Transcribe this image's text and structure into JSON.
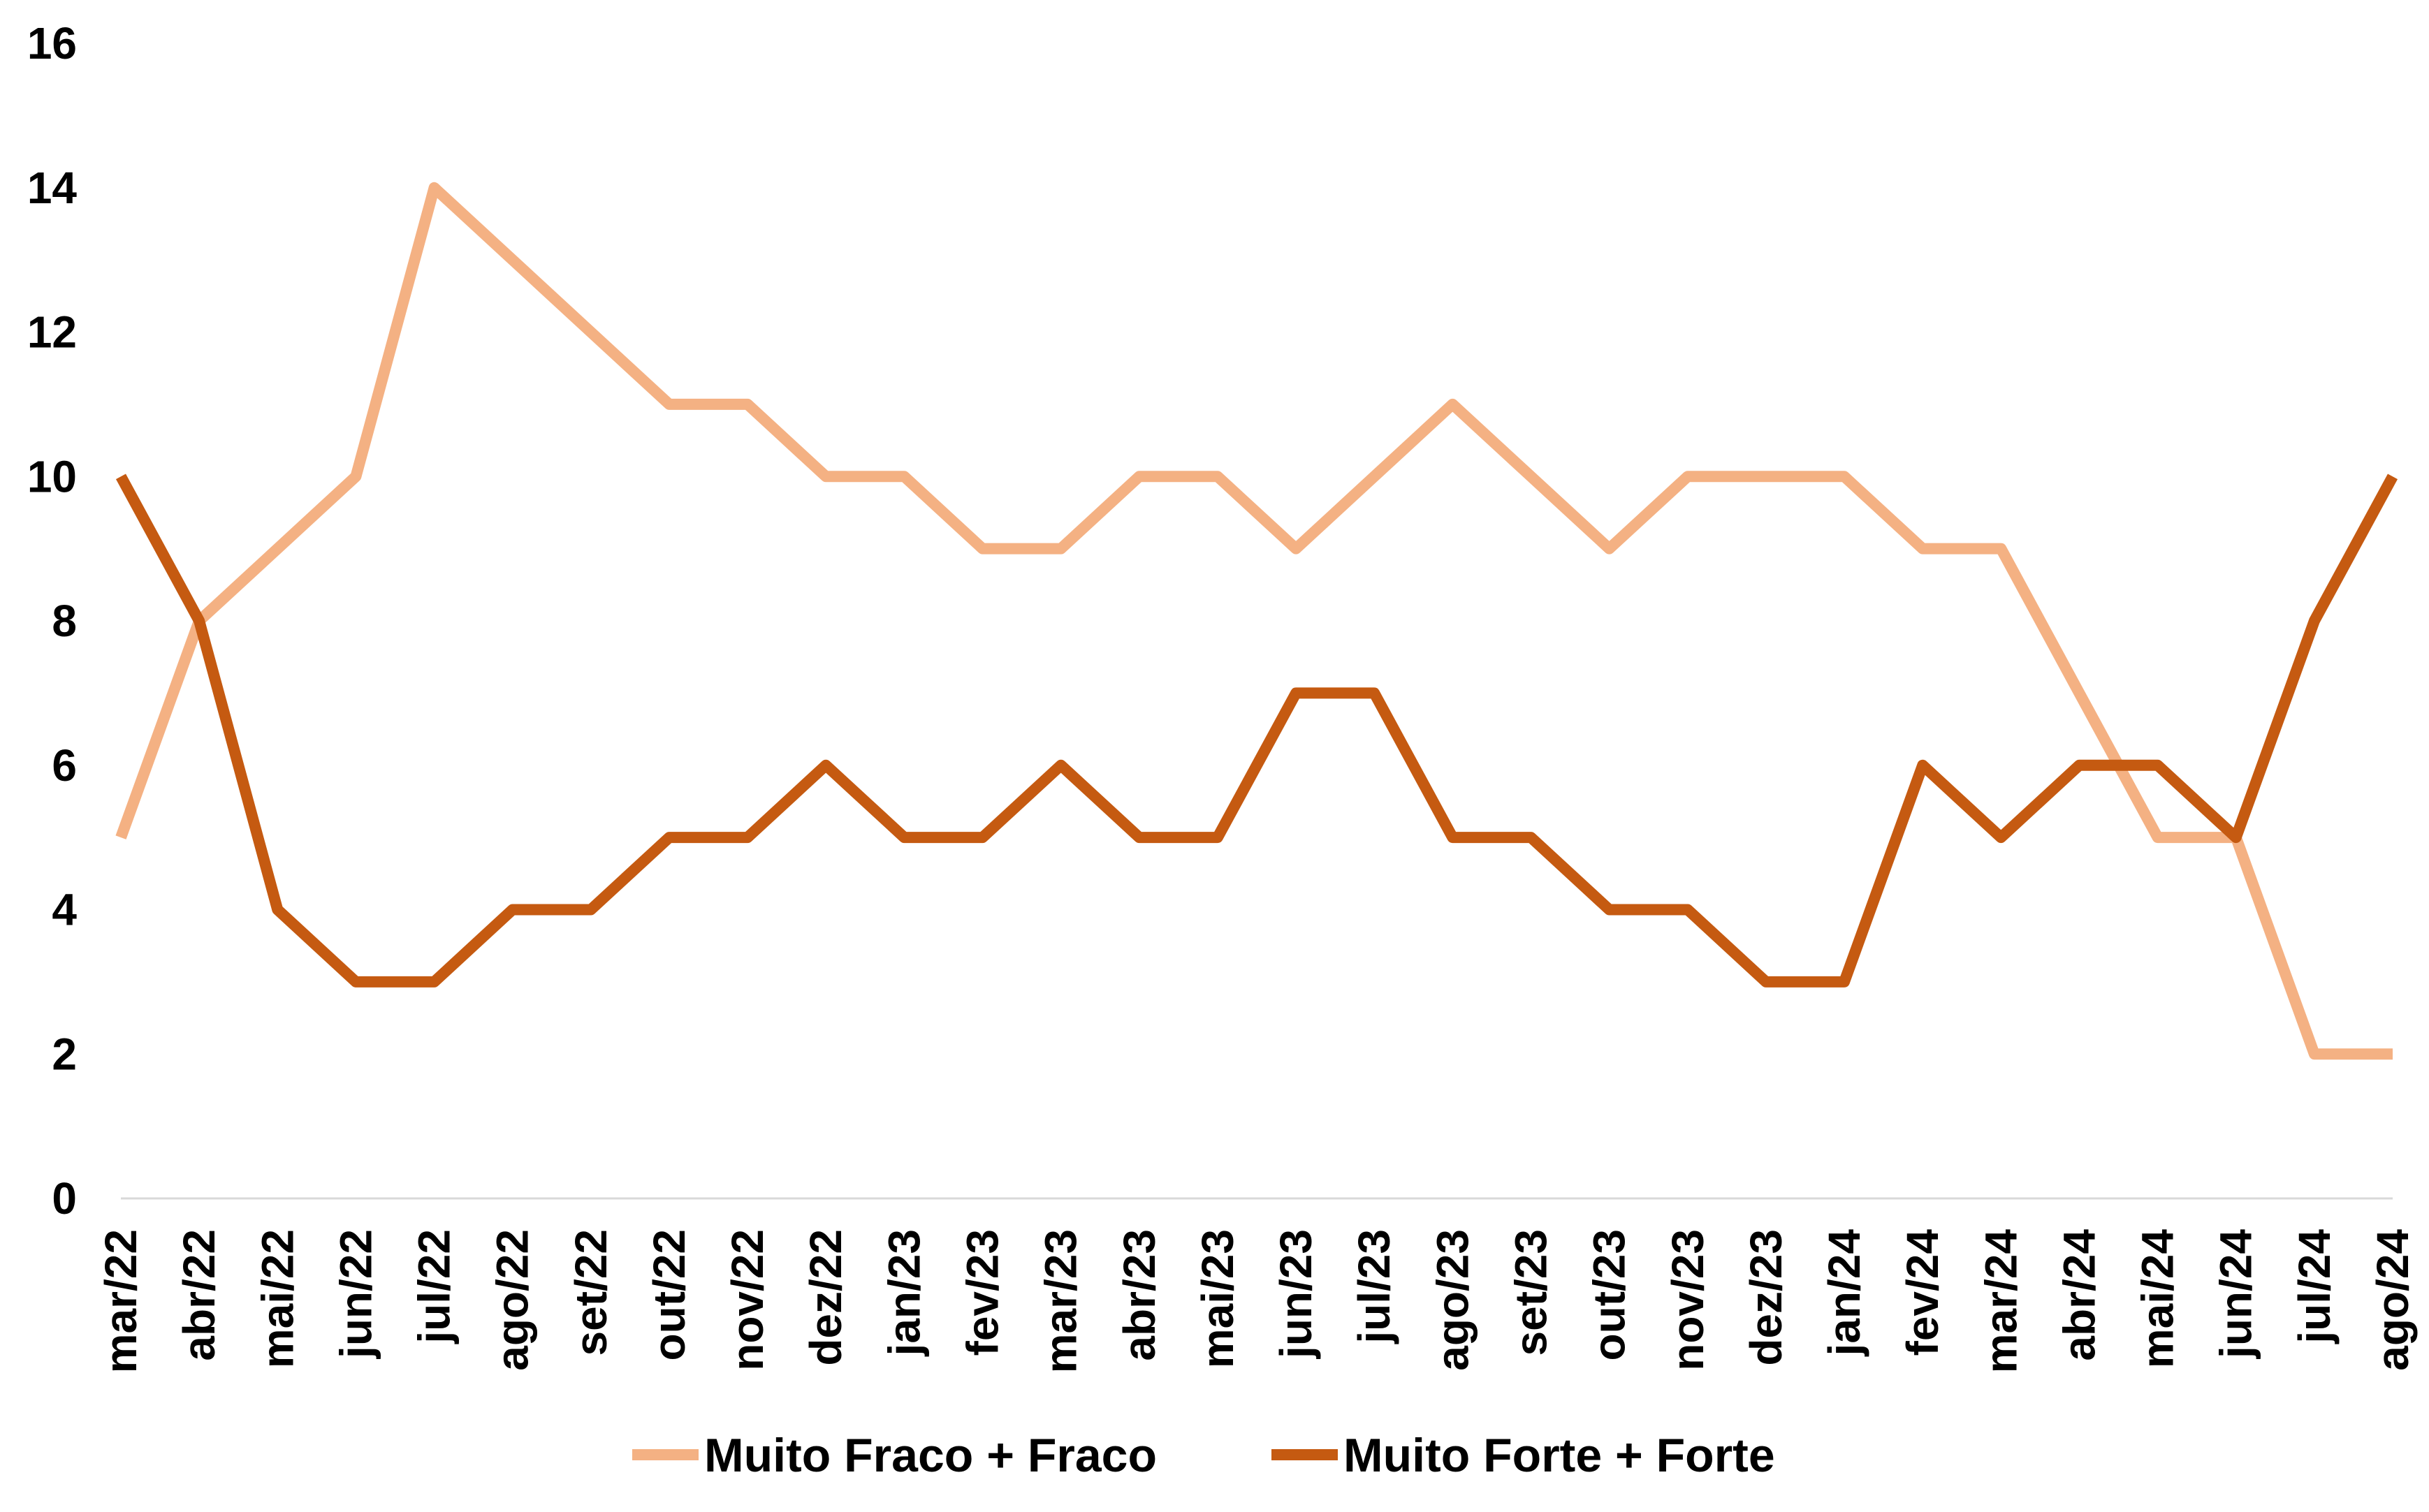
{
  "chart_data": {
    "type": "line",
    "categories": [
      "mar/22",
      "abr/22",
      "mai/22",
      "jun/22",
      "jul/22",
      "ago/22",
      "set/22",
      "out/22",
      "nov/22",
      "dez/22",
      "jan/23",
      "fev/23",
      "mar/23",
      "abr/23",
      "mai/23",
      "jun/23",
      "jul/23",
      "ago/23",
      "set/23",
      "out/23",
      "nov/23",
      "dez/23",
      "jan/24",
      "fev/24",
      "mar/24",
      "abr/24",
      "mai/24",
      "jun/24",
      "jul/24",
      "ago/24"
    ],
    "series": [
      {
        "name": "Muito Fraco + Fraco",
        "color": "#F4B183",
        "values": [
          5,
          8,
          9,
          10,
          14,
          13,
          12,
          11,
          11,
          10,
          10,
          9,
          9,
          10,
          10,
          9,
          10,
          11,
          10,
          9,
          10,
          10,
          10,
          9,
          9,
          7,
          5,
          5,
          2,
          2
        ]
      },
      {
        "name": "Muito Forte + Forte",
        "color": "#C55A11",
        "values": [
          10,
          8,
          4,
          3,
          3,
          4,
          4,
          5,
          5,
          6,
          5,
          5,
          6,
          5,
          5,
          7,
          7,
          5,
          5,
          4,
          4,
          3,
          3,
          6,
          5,
          6,
          6,
          5,
          8,
          10
        ]
      }
    ],
    "ylim": [
      0,
      16
    ],
    "yticks": [
      0,
      2,
      4,
      6,
      8,
      10,
      12,
      14,
      16
    ],
    "title": "",
    "xlabel": "",
    "ylabel": "",
    "grid": false,
    "legend_position": "bottom-center"
  }
}
